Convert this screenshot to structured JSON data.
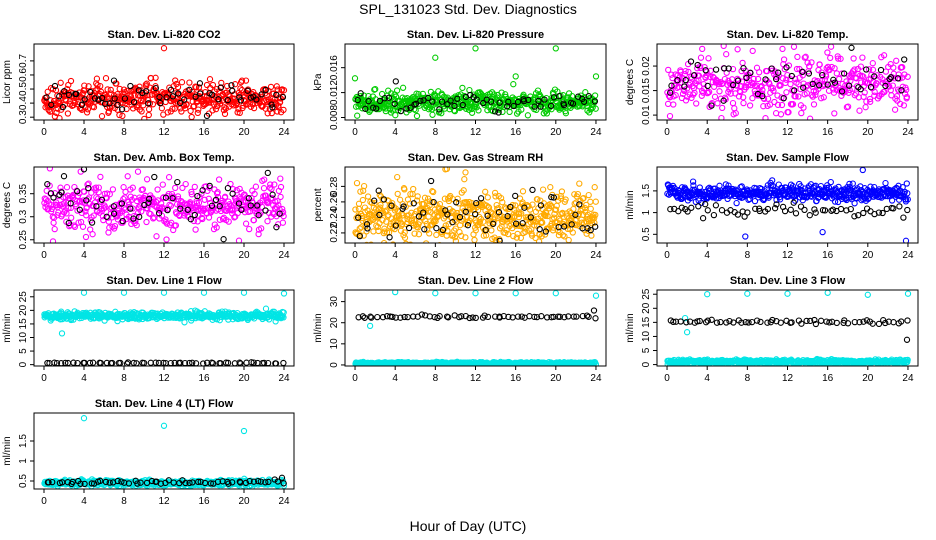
{
  "figure": {
    "title": "SPL_131023  Std. Dev. Diagnostics",
    "xlabel": "Hour of Day (UTC)"
  },
  "chart_data": [
    {
      "type": "scatter",
      "title": "Stan. Dev. Li-820 CO2",
      "ylabel": "Licor ppm",
      "xlim": [
        -1,
        25
      ],
      "ylim": [
        0.28,
        0.82
      ],
      "xticks": [
        0,
        4,
        8,
        12,
        16,
        20,
        24
      ],
      "yticks": [
        0.3,
        0.4,
        0.5,
        0.6,
        0.7
      ],
      "series": [
        {
          "color": "#ff0000",
          "x_range": [
            0,
            24
          ],
          "count": 480,
          "y_center": 0.43,
          "y_spread": 0.055,
          "outliers": [
            [
              12,
              0.79
            ],
            [
              16.6,
              0.57
            ],
            [
              20.2,
              0.56
            ]
          ]
        },
        {
          "color": "#000000",
          "x_range": [
            0,
            24
          ],
          "count": 60,
          "y_center": 0.44,
          "y_spread": 0.045,
          "outliers": [
            [
              7,
              0.56
            ]
          ]
        }
      ]
    },
    {
      "type": "scatter",
      "title": "Stan. Dev. Li-820 Pressure",
      "ylabel": "kPa",
      "xlim": [
        -1,
        25
      ],
      "ylim": [
        0.0076,
        0.0198
      ],
      "xticks": [
        0,
        4,
        8,
        12,
        16,
        20,
        24
      ],
      "yticks": [
        0.008,
        0.012,
        0.016
      ],
      "series": [
        {
          "color": "#00cc00",
          "x_range": [
            0,
            24
          ],
          "count": 480,
          "y_center": 0.0104,
          "y_spread": 0.0008,
          "outliers": [
            [
              8,
              0.0176
            ],
            [
              12,
              0.0191
            ],
            [
              16,
              0.0146
            ],
            [
              20,
              0.0191
            ],
            [
              24,
              0.0146
            ],
            [
              0,
              0.0143
            ]
          ]
        },
        {
          "color": "#000000",
          "x_range": [
            0,
            24
          ],
          "count": 60,
          "y_center": 0.0104,
          "y_spread": 0.0008,
          "outliers": []
        }
      ]
    },
    {
      "type": "scatter",
      "title": "Stan. Dev. Li-820 Temp.",
      "ylabel": "degrees C",
      "xlim": [
        -1,
        25
      ],
      "ylim": [
        0.009,
        0.0245
      ],
      "xticks": [
        0,
        4,
        8,
        12,
        16,
        20,
        24
      ],
      "yticks": [
        0.01,
        0.015,
        0.02
      ],
      "series": [
        {
          "color": "#ff00ff",
          "x_range": [
            0,
            24
          ],
          "count": 420,
          "y_center": 0.0165,
          "y_spread": 0.0028,
          "outliers": [
            [
              3.5,
              0.0235
            ],
            [
              11.5,
              0.0235
            ],
            [
              0.3,
              0.0098
            ]
          ]
        },
        {
          "color": "#000000",
          "x_range": [
            0,
            24
          ],
          "count": 55,
          "y_center": 0.0175,
          "y_spread": 0.0025,
          "outliers": []
        }
      ]
    },
    {
      "type": "scatter",
      "title": "Stan. Dev. Amb. Box Temp.",
      "ylabel": "degrees C",
      "xlim": [
        -1,
        25
      ],
      "ylim": [
        0.243,
        0.408
      ],
      "xticks": [
        0,
        4,
        8,
        12,
        16,
        20,
        24
      ],
      "yticks": [
        0.25,
        0.3,
        0.35
      ],
      "series": [
        {
          "color": "#ff00ff",
          "x_range": [
            0,
            24
          ],
          "count": 460,
          "y_center": 0.323,
          "y_spread": 0.028,
          "outliers": [
            [
              4.2,
              0.256
            ],
            [
              19.5,
              0.248
            ]
          ]
        },
        {
          "color": "#000000",
          "x_range": [
            0,
            24
          ],
          "count": 55,
          "y_center": 0.325,
          "y_spread": 0.025,
          "outliers": [
            [
              4,
              0.403
            ],
            [
              2,
              0.388
            ]
          ]
        }
      ]
    },
    {
      "type": "scatter",
      "title": "Stan. Dev. Gas Stream RH",
      "ylabel": "percent",
      "xlim": [
        -1,
        25
      ],
      "ylim": [
        0.207,
        0.305
      ],
      "xticks": [
        0,
        4,
        8,
        12,
        16,
        20,
        24
      ],
      "yticks": [
        0.22,
        0.24,
        0.26,
        0.28
      ],
      "series": [
        {
          "color": "#ffaa00",
          "x_range": [
            0,
            24
          ],
          "count": 560,
          "y_center": 0.24,
          "y_spread": 0.016,
          "outliers": [
            [
              9,
              0.302
            ],
            [
              11,
              0.298
            ],
            [
              4.2,
              0.292
            ]
          ]
        },
        {
          "color": "#000000",
          "x_range": [
            0,
            24
          ],
          "count": 60,
          "y_center": 0.242,
          "y_spread": 0.017,
          "outliers": []
        }
      ]
    },
    {
      "type": "scatter",
      "title": "Stan. Dev. Sample Flow",
      "ylabel": "ml/min",
      "xlim": [
        -1,
        25
      ],
      "ylim": [
        0.3,
        2.05
      ],
      "xticks": [
        0,
        4,
        8,
        12,
        16,
        20,
        24
      ],
      "yticks": [
        0.5,
        1.0,
        1.5
      ],
      "series": [
        {
          "color": "#0000ff",
          "x_range": [
            0,
            24
          ],
          "count": 480,
          "y_center": 1.45,
          "y_spread": 0.09,
          "outliers": [
            [
              19.5,
              1.98
            ],
            [
              23.8,
              0.35
            ],
            [
              7.8,
              0.45
            ],
            [
              15.5,
              0.55
            ]
          ]
        },
        {
          "color": "#000000",
          "x_range": [
            0,
            24
          ],
          "count": 60,
          "y_center": 1.05,
          "y_spread": 0.08,
          "outliers": []
        }
      ]
    },
    {
      "type": "scatter",
      "title": "Stan. Dev. Line 1 Flow",
      "ylabel": "ml/min",
      "xlim": [
        -1,
        25
      ],
      "ylim": [
        -0.5,
        27.5
      ],
      "xticks": [
        0,
        4,
        8,
        12,
        16,
        20,
        24
      ],
      "yticks": [
        0,
        5,
        10,
        15,
        20,
        25
      ],
      "series": [
        {
          "color": "#00e5e5",
          "x_range": [
            0,
            24
          ],
          "count": 480,
          "y_center": 18.0,
          "y_spread": 0.7,
          "outliers": [
            [
              4,
              26.5
            ],
            [
              8,
              26.5
            ],
            [
              12,
              26.5
            ],
            [
              16,
              26.5
            ],
            [
              20,
              26.5
            ],
            [
              24,
              26.2
            ],
            [
              1.8,
              11.5
            ]
          ]
        },
        {
          "color": "#000000",
          "x_range": [
            0,
            24
          ],
          "count": 60,
          "y_center": 0.6,
          "y_spread": 0.1,
          "outliers": []
        }
      ]
    },
    {
      "type": "scatter",
      "title": "Stan. Dev. Line 2 Flow",
      "ylabel": "ml/min",
      "xlim": [
        -1,
        25
      ],
      "ylim": [
        -0.5,
        35.5
      ],
      "xticks": [
        0,
        4,
        8,
        12,
        16,
        20,
        24
      ],
      "yticks": [
        0,
        10,
        20,
        30
      ],
      "series": [
        {
          "color": "#00e5e5",
          "x_range": [
            0,
            24
          ],
          "count": 480,
          "y_center": 0.8,
          "y_spread": 0.25,
          "outliers": [
            [
              4,
              34.5
            ],
            [
              8,
              34.0
            ],
            [
              12,
              34.0
            ],
            [
              16,
              34.0
            ],
            [
              20,
              34.0
            ],
            [
              24,
              32.8
            ],
            [
              1.5,
              18.5
            ]
          ]
        },
        {
          "color": "#000000",
          "x_range": [
            0,
            24
          ],
          "count": 60,
          "y_center": 22.8,
          "y_spread": 0.35,
          "outliers": [
            [
              23.8,
              25.8
            ]
          ]
        }
      ]
    },
    {
      "type": "scatter",
      "title": "Stan. Dev. Line 3 Flow",
      "ylabel": "ml/min",
      "xlim": [
        -1,
        25
      ],
      "ylim": [
        -0.5,
        26.5
      ],
      "xticks": [
        0,
        4,
        8,
        12,
        16,
        20,
        24
      ],
      "yticks": [
        0,
        5,
        10,
        15,
        20,
        25
      ],
      "series": [
        {
          "color": "#00e5e5",
          "x_range": [
            0,
            24
          ],
          "count": 480,
          "y_center": 1.0,
          "y_spread": 0.35,
          "outliers": [
            [
              4,
              25.0
            ],
            [
              8,
              25.2
            ],
            [
              12,
              25.2
            ],
            [
              16,
              25.5
            ],
            [
              20,
              24.8
            ],
            [
              24,
              25.2
            ],
            [
              2,
              11.5
            ],
            [
              1.8,
              16.5
            ]
          ]
        },
        {
          "color": "#000000",
          "x_range": [
            0,
            24
          ],
          "count": 60,
          "y_center": 15.2,
          "y_spread": 0.3,
          "outliers": [
            [
              23.9,
              8.8
            ]
          ]
        }
      ]
    },
    {
      "type": "scatter",
      "title": "Stan. Dev. Line 4 (LT) Flow",
      "ylabel": "ml/min",
      "xlim": [
        -1,
        25
      ],
      "ylim": [
        0.3,
        2.2
      ],
      "xticks": [
        0,
        4,
        8,
        12,
        16,
        20,
        24
      ],
      "yticks": [
        0.5,
        1.0,
        1.5
      ],
      "series": [
        {
          "color": "#00e5e5",
          "x_range": [
            0,
            24
          ],
          "count": 480,
          "y_center": 0.45,
          "y_spread": 0.035,
          "outliers": [
            [
              4,
              2.07
            ],
            [
              12,
              1.88
            ],
            [
              20,
              1.75
            ]
          ]
        },
        {
          "color": "#000000",
          "x_range": [
            0,
            24
          ],
          "count": 60,
          "y_center": 0.47,
          "y_spread": 0.03,
          "outliers": [
            [
              23.8,
              0.58
            ]
          ]
        }
      ]
    }
  ]
}
